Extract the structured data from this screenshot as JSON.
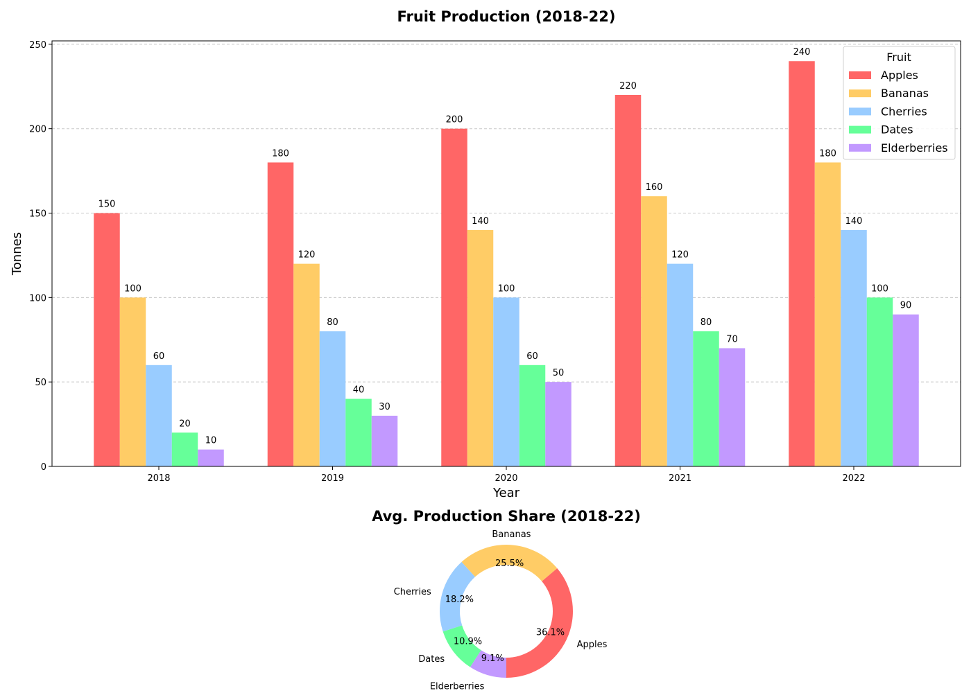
{
  "chart_data": [
    {
      "type": "bar",
      "title": "Fruit Production (2018-22)",
      "xlabel": "Year",
      "ylabel": "Tonnes",
      "categories": [
        "2018",
        "2019",
        "2020",
        "2021",
        "2022"
      ],
      "ylim": [
        0,
        252
      ],
      "yticks": [
        0,
        50,
        100,
        150,
        200,
        250
      ],
      "grid": "y, dashed",
      "legend": {
        "title": "Fruit",
        "placement": "top-right"
      },
      "series": [
        {
          "name": "Apples",
          "color": "#ff6666",
          "values": [
            150,
            180,
            200,
            220,
            240
          ]
        },
        {
          "name": "Bananas",
          "color": "#ffcc66",
          "values": [
            100,
            120,
            140,
            160,
            180
          ]
        },
        {
          "name": "Cherries",
          "color": "#99ccff",
          "values": [
            60,
            80,
            100,
            120,
            140
          ]
        },
        {
          "name": "Dates",
          "color": "#66ff99",
          "values": [
            20,
            40,
            60,
            80,
            100
          ]
        },
        {
          "name": "Elderberries",
          "color": "#c299ff",
          "values": [
            10,
            30,
            50,
            70,
            90
          ]
        }
      ]
    },
    {
      "type": "pie",
      "style": "donut",
      "title": "Avg. Production Share (2018-22)",
      "slices": [
        {
          "label": "Apples",
          "percent": "36.1%",
          "value": 36.1,
          "color": "#ff6666"
        },
        {
          "label": "Bananas",
          "percent": "25.5%",
          "value": 25.5,
          "color": "#ffcc66"
        },
        {
          "label": "Cherries",
          "percent": "18.2%",
          "value": 18.2,
          "color": "#99ccff"
        },
        {
          "label": "Dates",
          "percent": "10.9%",
          "value": 10.9,
          "color": "#66ff99"
        },
        {
          "label": "Elderberries",
          "percent": "9.1%",
          "value": 9.1,
          "color": "#c299ff"
        }
      ]
    }
  ]
}
